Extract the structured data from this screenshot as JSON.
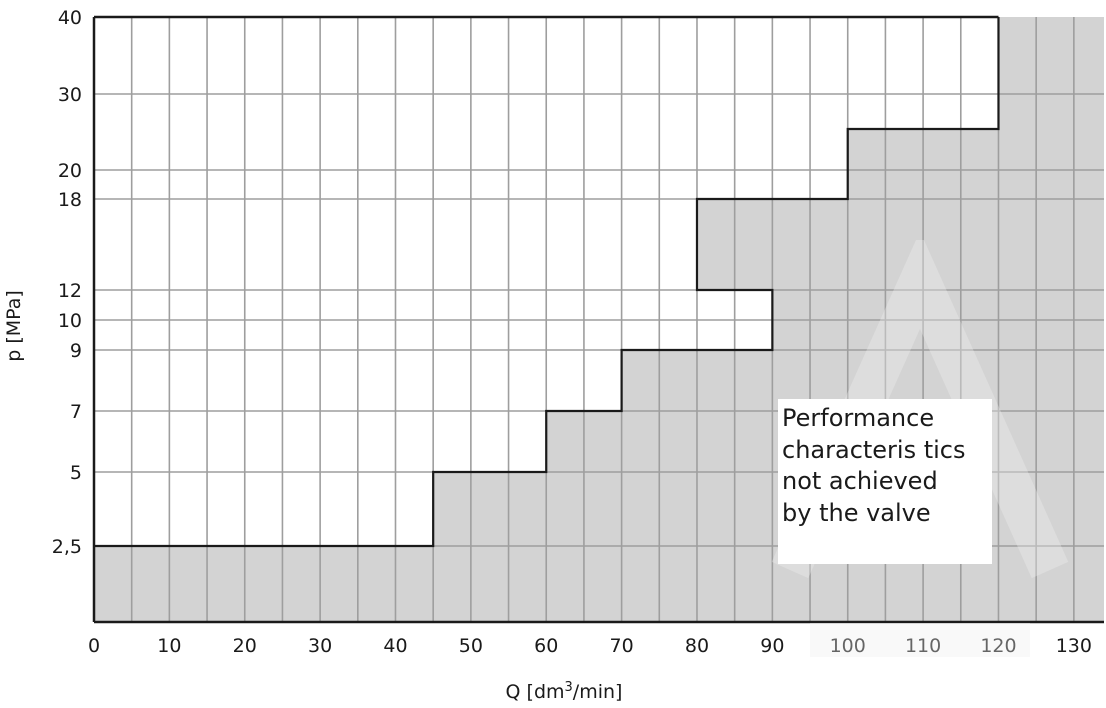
{
  "chart_data": {
    "type": "area",
    "title": "",
    "xlabel": "Q [dm",
    "xlabel_sup": "3",
    "xlabel_tail": "/min]",
    "ylabel": "p [MPa]",
    "xlim": [
      0,
      134
    ],
    "ylim": [
      0,
      40
    ],
    "x_ticks": [
      0,
      10,
      20,
      30,
      40,
      50,
      60,
      70,
      80,
      90,
      100,
      110,
      120,
      130
    ],
    "x_tick_labels": [
      "0",
      "10",
      "20",
      "30",
      "40",
      "50",
      "60",
      "70",
      "80",
      "90",
      "100",
      "110",
      "120",
      "130"
    ],
    "y_ticks": [
      2.5,
      5,
      7,
      9,
      10,
      12,
      18,
      20,
      30,
      40
    ],
    "y_tick_labels": [
      "2,5",
      "5",
      "7",
      "9",
      "10",
      "12",
      "18",
      "20",
      "30",
      "40"
    ],
    "grid": true,
    "x_grid_step": 5,
    "boundary": {
      "q": [
        45,
        45,
        60,
        60,
        70,
        70,
        90,
        90,
        80,
        80,
        100,
        100,
        120,
        120
      ],
      "p": [
        2.5,
        5,
        5,
        7,
        7,
        9,
        9,
        12,
        12,
        18,
        18,
        25,
        25,
        40
      ]
    },
    "annotation": [
      "Performance",
      "characteris tics",
      "not achieved",
      "by the valve"
    ]
  },
  "colors": {
    "shade": "#d3d3d3",
    "grid": "#9e9e9e",
    "border": "#1a1a1a",
    "background": "#ffffff"
  }
}
